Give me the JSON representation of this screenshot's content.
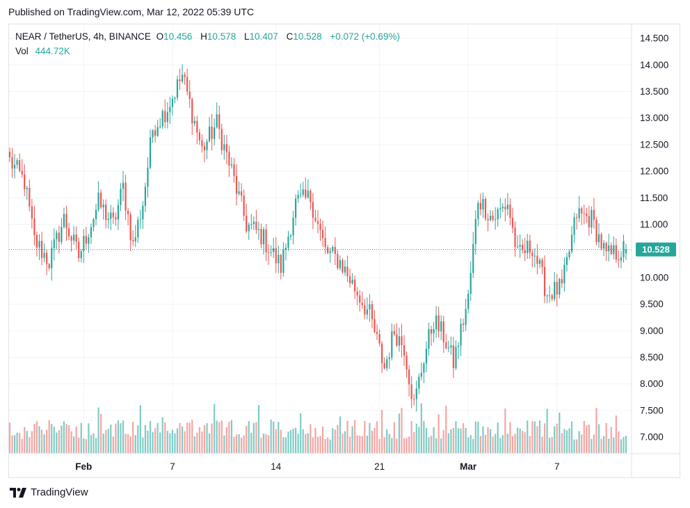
{
  "header": {
    "published": "Published on TradingView.com, Mar 12, 2022 05:39 UTC"
  },
  "legend": {
    "symbol": "NEAR / TetherUS, 4h, BINANCE",
    "o_label": "O",
    "o_value": "10.456",
    "h_label": "H",
    "h_value": "10.578",
    "l_label": "L",
    "l_value": "10.407",
    "c_label": "C",
    "c_value": "10.528",
    "change": "+0.072 (+0.69%)",
    "vol_label": "Vol",
    "vol_value": "444.72K"
  },
  "footer": {
    "brand": "TradingView",
    "logo_icon": "tradingview-logo-icon"
  },
  "colors": {
    "up": "#26a69a",
    "down": "#ef5350",
    "up_vol": "#7fcbc4",
    "down_vol": "#f4a5a3",
    "grid": "#f0f3fa"
  },
  "chart_data": {
    "type": "candlestick",
    "title": "NEAR / TetherUS, 4h, BINANCE",
    "y_axis_ticks": [
      "14.500",
      "14.000",
      "13.500",
      "13.000",
      "12.500",
      "12.000",
      "11.500",
      "11.000",
      "10.500",
      "10.000",
      "9.500",
      "9.000",
      "8.500",
      "8.000",
      "7.500",
      "7.000"
    ],
    "ylim": [
      6.7,
      14.75
    ],
    "x_axis_labels": [
      {
        "label": "Feb",
        "index": 30
      },
      {
        "label": "7",
        "index": 66
      },
      {
        "label": "14",
        "index": 108
      },
      {
        "label": "21",
        "index": 150
      },
      {
        "label": "Mar",
        "index": 186
      },
      {
        "label": "7",
        "index": 222
      }
    ],
    "last_price": "10.528",
    "last_price_value": 10.528,
    "candle_count": 251,
    "path_anchors": [
      [
        0,
        12.2
      ],
      [
        6,
        11.8
      ],
      [
        10,
        10.7
      ],
      [
        16,
        10.3
      ],
      [
        22,
        11.1
      ],
      [
        28,
        10.4
      ],
      [
        36,
        11.4
      ],
      [
        42,
        11.0
      ],
      [
        46,
        11.7
      ],
      [
        50,
        10.6
      ],
      [
        54,
        11.4
      ],
      [
        58,
        12.8
      ],
      [
        64,
        13.2
      ],
      [
        70,
        13.8
      ],
      [
        78,
        12.4
      ],
      [
        84,
        12.9
      ],
      [
        90,
        12.0
      ],
      [
        96,
        11.0
      ],
      [
        102,
        10.8
      ],
      [
        110,
        10.2
      ],
      [
        116,
        11.4
      ],
      [
        122,
        11.5
      ],
      [
        128,
        10.5
      ],
      [
        134,
        10.3
      ],
      [
        140,
        9.8
      ],
      [
        146,
        9.3
      ],
      [
        152,
        8.3
      ],
      [
        156,
        9.0
      ],
      [
        160,
        8.7
      ],
      [
        164,
        7.6
      ],
      [
        168,
        8.5
      ],
      [
        172,
        9.2
      ],
      [
        176,
        8.9
      ],
      [
        180,
        8.4
      ],
      [
        186,
        9.6
      ],
      [
        190,
        11.5
      ],
      [
        196,
        11.1
      ],
      [
        202,
        11.4
      ],
      [
        206,
        10.4
      ],
      [
        212,
        10.6
      ],
      [
        218,
        9.7
      ],
      [
        224,
        9.8
      ],
      [
        230,
        11.2
      ],
      [
        236,
        11.1
      ],
      [
        242,
        10.4
      ],
      [
        250,
        10.528
      ]
    ],
    "volume_ylim": [
      0,
      12
    ]
  }
}
